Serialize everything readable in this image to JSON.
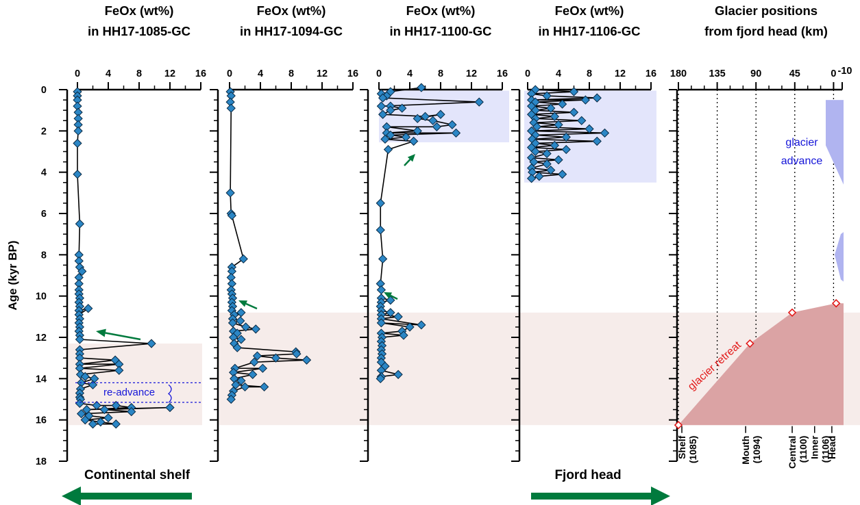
{
  "chart_data": {
    "type": "scatter",
    "y_axis": {
      "label": "Age (kyr BP)",
      "range": [
        0,
        18
      ],
      "ticks": [
        0,
        2,
        4,
        6,
        8,
        10,
        12,
        14,
        16,
        18
      ]
    },
    "panels": [
      {
        "title": [
          "FeOx (wt%)",
          "in HH17-1085-GC"
        ],
        "x_range": [
          0,
          16
        ],
        "x_ticks": [
          0,
          4,
          8,
          12,
          16
        ],
        "x_tick_labels": [
          "0",
          "4",
          "8",
          "12",
          "16"
        ],
        "points": [
          [
            0,
            0.1
          ],
          [
            0,
            0.3
          ],
          [
            0,
            0.5
          ],
          [
            0,
            0.8
          ],
          [
            0.1,
            1.1
          ],
          [
            0.1,
            1.4
          ],
          [
            0.1,
            1.7
          ],
          [
            0.1,
            2.0
          ],
          [
            0,
            2.6
          ],
          [
            0,
            4.1
          ],
          [
            0.3,
            6.5
          ],
          [
            0.2,
            8.0
          ],
          [
            0.2,
            8.3
          ],
          [
            0.3,
            8.6
          ],
          [
            0.6,
            8.8
          ],
          [
            0.2,
            9.1
          ],
          [
            0.2,
            9.4
          ],
          [
            0.2,
            9.7
          ],
          [
            0.2,
            9.9
          ],
          [
            0.3,
            10.1
          ],
          [
            0.2,
            10.3
          ],
          [
            0.3,
            10.5
          ],
          [
            0.2,
            10.7
          ],
          [
            1.4,
            10.6
          ],
          [
            0.2,
            10.9
          ],
          [
            0.3,
            11.1
          ],
          [
            0.2,
            11.3
          ],
          [
            0.3,
            11.5
          ],
          [
            0.2,
            11.7
          ],
          [
            0.3,
            11.9
          ],
          [
            0.3,
            12.1
          ],
          [
            9.6,
            12.3
          ],
          [
            0.3,
            12.6
          ],
          [
            0.3,
            12.8
          ],
          [
            0.3,
            13.0
          ],
          [
            4.9,
            13.1
          ],
          [
            0.3,
            13.3
          ],
          [
            5.4,
            13.3
          ],
          [
            0.3,
            13.5
          ],
          [
            5.4,
            13.6
          ],
          [
            0.4,
            13.8
          ],
          [
            1.0,
            13.9
          ],
          [
            2.2,
            14.0
          ],
          [
            0.5,
            14.2
          ],
          [
            2.0,
            14.3
          ],
          [
            0.4,
            14.5
          ],
          [
            0.3,
            14.7
          ],
          [
            0.3,
            14.9
          ],
          [
            0.4,
            15.0
          ],
          [
            0.3,
            15.2
          ],
          [
            2.5,
            15.3
          ],
          [
            5.0,
            15.3
          ],
          [
            7.0,
            15.4
          ],
          [
            1.2,
            15.5
          ],
          [
            12.0,
            15.4
          ],
          [
            3.5,
            15.5
          ],
          [
            7.0,
            15.6
          ],
          [
            0.5,
            15.7
          ],
          [
            1.5,
            15.8
          ],
          [
            4.0,
            15.9
          ],
          [
            1.0,
            16.0
          ],
          [
            3.0,
            16.1
          ],
          [
            5.0,
            16.2
          ],
          [
            2.0,
            16.2
          ]
        ],
        "annotations": [
          "re-advance"
        ],
        "bottom_label": "Continental shelf"
      },
      {
        "title": [
          "FeOx (wt%)",
          "in HH17-1094-GC"
        ],
        "x_range": [
          0,
          16
        ],
        "x_ticks": [
          0,
          4,
          8,
          12,
          16
        ],
        "x_tick_labels": [
          "0",
          "4",
          "8",
          "12",
          "16"
        ],
        "points": [
          [
            0.1,
            0.1
          ],
          [
            0.2,
            0.3
          ],
          [
            0.1,
            0.6
          ],
          [
            0.2,
            0.9
          ],
          [
            0.1,
            5.0
          ],
          [
            0.2,
            6.0
          ],
          [
            0.3,
            6.1
          ],
          [
            1.8,
            8.2
          ],
          [
            0.3,
            8.6
          ],
          [
            0.3,
            8.8
          ],
          [
            0.2,
            9.1
          ],
          [
            0.3,
            9.4
          ],
          [
            0.2,
            9.7
          ],
          [
            0.3,
            9.9
          ],
          [
            0.4,
            10.1
          ],
          [
            0.3,
            10.3
          ],
          [
            0.4,
            10.5
          ],
          [
            0.3,
            10.7
          ],
          [
            0.6,
            10.9
          ],
          [
            1.5,
            10.8
          ],
          [
            0.4,
            11.1
          ],
          [
            1.4,
            11.2
          ],
          [
            0.4,
            11.3
          ],
          [
            2.1,
            11.5
          ],
          [
            3.4,
            11.6
          ],
          [
            0.5,
            11.7
          ],
          [
            1.0,
            11.8
          ],
          [
            0.5,
            12.0
          ],
          [
            1.5,
            12.1
          ],
          [
            0.6,
            12.3
          ],
          [
            1.0,
            12.5
          ],
          [
            8.6,
            12.7
          ],
          [
            8.7,
            12.8
          ],
          [
            3.6,
            12.9
          ],
          [
            6.0,
            13.0
          ],
          [
            10.0,
            13.1
          ],
          [
            3.2,
            13.2
          ],
          [
            0.7,
            13.5
          ],
          [
            4.3,
            13.5
          ],
          [
            0.5,
            13.7
          ],
          [
            3.0,
            13.8
          ],
          [
            0.6,
            14.0
          ],
          [
            1.5,
            14.1
          ],
          [
            0.8,
            14.3
          ],
          [
            4.5,
            14.4
          ],
          [
            2.0,
            14.4
          ],
          [
            0.5,
            14.6
          ],
          [
            0.3,
            14.8
          ],
          [
            0.2,
            15.0
          ]
        ]
      },
      {
        "title": [
          "FeOx (wt%)",
          "in HH17-1100-GC"
        ],
        "x_range": [
          0,
          16
        ],
        "x_ticks": [
          0,
          4,
          8,
          12,
          16
        ],
        "x_tick_labels": [
          "0",
          "4",
          "8",
          "12",
          "16"
        ],
        "points": [
          [
            5.5,
            -0.1
          ],
          [
            1.5,
            0.1
          ],
          [
            0.3,
            0.2
          ],
          [
            1.0,
            0.3
          ],
          [
            0.5,
            0.4
          ],
          [
            13.0,
            0.6
          ],
          [
            0.3,
            0.8
          ],
          [
            1.5,
            0.8
          ],
          [
            3.0,
            0.9
          ],
          [
            1.5,
            1.0
          ],
          [
            0.5,
            1.2
          ],
          [
            6.0,
            1.3
          ],
          [
            8.0,
            1.2
          ],
          [
            5.0,
            1.4
          ],
          [
            7.0,
            1.5
          ],
          [
            9.5,
            1.7
          ],
          [
            7.5,
            1.8
          ],
          [
            1.0,
            1.8
          ],
          [
            5.0,
            2.0
          ],
          [
            1.0,
            2.1
          ],
          [
            10.0,
            2.1
          ],
          [
            1.5,
            2.2
          ],
          [
            3.5,
            2.3
          ],
          [
            0.8,
            2.4
          ],
          [
            4.5,
            2.5
          ],
          [
            1.2,
            2.9
          ],
          [
            0.2,
            5.5
          ],
          [
            0.2,
            6.8
          ],
          [
            0.5,
            8.2
          ],
          [
            0.2,
            9.4
          ],
          [
            0.3,
            9.7
          ],
          [
            0.3,
            10.1
          ],
          [
            1.5,
            10.2
          ],
          [
            0.3,
            10.3
          ],
          [
            0.2,
            10.5
          ],
          [
            0.3,
            10.7
          ],
          [
            1.5,
            10.8
          ],
          [
            0.3,
            10.9
          ],
          [
            2.5,
            11.0
          ],
          [
            0.3,
            11.1
          ],
          [
            5.5,
            11.4
          ],
          [
            0.3,
            11.3
          ],
          [
            4.0,
            11.5
          ],
          [
            3.0,
            11.7
          ],
          [
            0.3,
            11.8
          ],
          [
            3.2,
            11.9
          ],
          [
            0.4,
            12.0
          ],
          [
            0.3,
            12.2
          ],
          [
            0.4,
            12.4
          ],
          [
            0.3,
            12.6
          ],
          [
            0.4,
            12.8
          ],
          [
            0.3,
            13.0
          ],
          [
            0.3,
            13.2
          ],
          [
            0.8,
            13.4
          ],
          [
            0.3,
            13.6
          ],
          [
            2.5,
            13.8
          ],
          [
            0.3,
            13.9
          ],
          [
            0.2,
            14.0
          ]
        ]
      },
      {
        "title": [
          "FeOx (wt%)",
          "in HH17-1106-GC"
        ],
        "x_range": [
          0,
          16
        ],
        "x_ticks": [
          0,
          4,
          8,
          12,
          16
        ],
        "x_tick_labels": [
          "0",
          "4",
          "8",
          "12",
          "16"
        ],
        "points": [
          [
            1.0,
            0.0
          ],
          [
            6.0,
            0.1
          ],
          [
            0.5,
            0.2
          ],
          [
            2.5,
            0.3
          ],
          [
            9.0,
            0.4
          ],
          [
            0.5,
            0.5
          ],
          [
            7.5,
            0.5
          ],
          [
            1.0,
            0.6
          ],
          [
            4.5,
            0.7
          ],
          [
            0.5,
            0.8
          ],
          [
            3.0,
            0.9
          ],
          [
            1.0,
            1.0
          ],
          [
            6.0,
            1.1
          ],
          [
            0.5,
            1.2
          ],
          [
            3.5,
            1.3
          ],
          [
            1.0,
            1.4
          ],
          [
            7.0,
            1.5
          ],
          [
            0.8,
            1.6
          ],
          [
            4.0,
            1.7
          ],
          [
            1.2,
            1.8
          ],
          [
            8.0,
            1.9
          ],
          [
            0.5,
            2.0
          ],
          [
            10.0,
            2.1
          ],
          [
            1.0,
            2.2
          ],
          [
            5.0,
            2.3
          ],
          [
            0.6,
            2.4
          ],
          [
            9.0,
            2.5
          ],
          [
            1.0,
            2.6
          ],
          [
            3.5,
            2.7
          ],
          [
            0.5,
            2.8
          ],
          [
            5.0,
            2.9
          ],
          [
            1.0,
            3.0
          ],
          [
            2.5,
            3.1
          ],
          [
            0.5,
            3.3
          ],
          [
            4.0,
            3.4
          ],
          [
            0.8,
            3.5
          ],
          [
            2.5,
            3.6
          ],
          [
            0.5,
            3.8
          ],
          [
            3.0,
            3.9
          ],
          [
            0.6,
            4.0
          ],
          [
            4.5,
            4.1
          ],
          [
            1.5,
            4.2
          ],
          [
            0.5,
            4.3
          ]
        ],
        "bottom_label": "Fjord head"
      },
      {
        "title": [
          "Glacier positions",
          "from fjord head (km)"
        ],
        "x_range": [
          180,
          -10
        ],
        "x_ticks": [
          180,
          135,
          90,
          45,
          0,
          -10
        ],
        "x_tick_labels": [
          "180",
          "135",
          "90",
          "45",
          "0",
          "-10"
        ],
        "retreat_points": [
          [
            180,
            16.25
          ],
          [
            97,
            12.3
          ],
          [
            48,
            10.8
          ],
          [
            -3,
            10.35
          ]
        ],
        "site_labels": [
          {
            "name": "Shelf",
            "core": "(1085)",
            "km": 176
          },
          {
            "name": "Mouth",
            "core": "(1094)",
            "km": 102
          },
          {
            "name": "Central",
            "core": "(1100)",
            "km": 48
          },
          {
            "name": "Inner",
            "core": "(1106)",
            "km": 22
          },
          {
            "name": "Head",
            "core": "",
            "km": 2
          }
        ],
        "annotations": [
          "glacier advance",
          "glacier retreat"
        ]
      }
    ]
  },
  "colors": {
    "marker": "#2b86c5",
    "retreat_fill": "#dba3a4",
    "retreat_band": "#f6ecea",
    "advance_band": "#e3e5fb",
    "advance_fill": "#b0b4f0",
    "arrow_green": "#007a3d",
    "annotation_blue": "#1414d8",
    "annotation_red": "#e21a1a"
  }
}
